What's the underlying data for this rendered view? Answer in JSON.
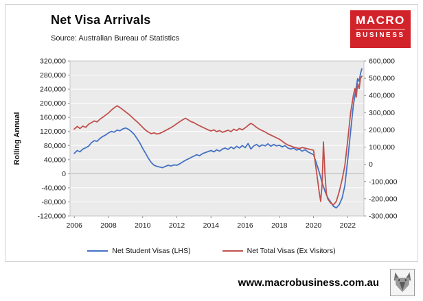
{
  "header": {
    "title": "Net Visa Arrivals",
    "source": "Source: Australian Bureau of Statistics"
  },
  "logo": {
    "line1": "MACRO",
    "line2": "BUSINESS",
    "bg_color": "#d2232a"
  },
  "footer": {
    "website": "www.macrobusiness.com.au"
  },
  "chart_data": {
    "type": "line",
    "title": "Net Visa Arrivals",
    "ylabel_left": "Rolling Annual",
    "ylim_left": [
      -120000,
      320000
    ],
    "ytick_step_left": 40000,
    "ylim_right": [
      -300000,
      600000
    ],
    "ytick_step_right": 100000,
    "xlim": [
      2005.75,
      2022.95
    ],
    "xticks": [
      2006,
      2008,
      2010,
      2012,
      2014,
      2016,
      2018,
      2020,
      2022
    ],
    "grid": true,
    "legend_position": "bottom",
    "colors": {
      "plot_bg": "#ebebeb",
      "gridline": "#ffffff",
      "zero_line": "#b7b7b7",
      "plot_border": "#c4c4c4"
    },
    "series": [
      {
        "name": "Net Student Visas (LHS)",
        "color": "#4472c4",
        "axis": "left",
        "points": [
          [
            2006.0,
            58000
          ],
          [
            2006.17,
            66000
          ],
          [
            2006.33,
            62000
          ],
          [
            2006.5,
            70000
          ],
          [
            2006.67,
            74000
          ],
          [
            2006.83,
            78000
          ],
          [
            2007.0,
            88000
          ],
          [
            2007.17,
            94000
          ],
          [
            2007.33,
            92000
          ],
          [
            2007.5,
            100000
          ],
          [
            2007.67,
            106000
          ],
          [
            2007.83,
            110000
          ],
          [
            2008.0,
            116000
          ],
          [
            2008.17,
            120000
          ],
          [
            2008.33,
            118000
          ],
          [
            2008.5,
            124000
          ],
          [
            2008.67,
            122000
          ],
          [
            2008.83,
            127000
          ],
          [
            2009.0,
            130000
          ],
          [
            2009.17,
            126000
          ],
          [
            2009.33,
            120000
          ],
          [
            2009.5,
            112000
          ],
          [
            2009.67,
            100000
          ],
          [
            2009.83,
            88000
          ],
          [
            2010.0,
            72000
          ],
          [
            2010.17,
            58000
          ],
          [
            2010.33,
            44000
          ],
          [
            2010.5,
            32000
          ],
          [
            2010.67,
            24000
          ],
          [
            2010.83,
            21000
          ],
          [
            2011.0,
            19000
          ],
          [
            2011.17,
            17000
          ],
          [
            2011.33,
            21000
          ],
          [
            2011.5,
            24000
          ],
          [
            2011.67,
            22000
          ],
          [
            2011.83,
            25000
          ],
          [
            2012.0,
            24000
          ],
          [
            2012.17,
            28000
          ],
          [
            2012.33,
            33000
          ],
          [
            2012.5,
            38000
          ],
          [
            2012.67,
            42000
          ],
          [
            2012.83,
            46000
          ],
          [
            2013.0,
            50000
          ],
          [
            2013.17,
            54000
          ],
          [
            2013.33,
            51000
          ],
          [
            2013.5,
            57000
          ],
          [
            2013.67,
            60000
          ],
          [
            2013.83,
            63000
          ],
          [
            2014.0,
            66000
          ],
          [
            2014.17,
            62000
          ],
          [
            2014.33,
            68000
          ],
          [
            2014.5,
            64000
          ],
          [
            2014.67,
            70000
          ],
          [
            2014.83,
            73000
          ],
          [
            2015.0,
            69000
          ],
          [
            2015.17,
            76000
          ],
          [
            2015.33,
            71000
          ],
          [
            2015.5,
            78000
          ],
          [
            2015.67,
            73000
          ],
          [
            2015.83,
            80000
          ],
          [
            2016.0,
            74000
          ],
          [
            2016.17,
            86000
          ],
          [
            2016.33,
            70000
          ],
          [
            2016.5,
            79000
          ],
          [
            2016.67,
            83000
          ],
          [
            2016.83,
            77000
          ],
          [
            2017.0,
            82000
          ],
          [
            2017.17,
            79000
          ],
          [
            2017.33,
            85000
          ],
          [
            2017.5,
            78000
          ],
          [
            2017.67,
            83000
          ],
          [
            2017.83,
            79000
          ],
          [
            2018.0,
            81000
          ],
          [
            2018.17,
            76000
          ],
          [
            2018.33,
            80000
          ],
          [
            2018.5,
            73000
          ],
          [
            2018.67,
            70000
          ],
          [
            2018.83,
            73000
          ],
          [
            2019.0,
            67000
          ],
          [
            2019.17,
            70000
          ],
          [
            2019.33,
            64000
          ],
          [
            2019.5,
            68000
          ],
          [
            2019.67,
            62000
          ],
          [
            2019.83,
            58000
          ],
          [
            2020.0,
            54000
          ],
          [
            2020.17,
            30000
          ],
          [
            2020.33,
            5000
          ],
          [
            2020.5,
            -25000
          ],
          [
            2020.67,
            -50000
          ],
          [
            2020.83,
            -68000
          ],
          [
            2021.0,
            -80000
          ],
          [
            2021.17,
            -93000
          ],
          [
            2021.33,
            -97000
          ],
          [
            2021.5,
            -88000
          ],
          [
            2021.67,
            -70000
          ],
          [
            2021.83,
            -35000
          ],
          [
            2022.0,
            40000
          ],
          [
            2022.17,
            120000
          ],
          [
            2022.33,
            195000
          ],
          [
            2022.5,
            245000
          ],
          [
            2022.58,
            270000
          ],
          [
            2022.67,
            262000
          ],
          [
            2022.75,
            285000
          ],
          [
            2022.83,
            298000
          ]
        ]
      },
      {
        "name": "Net Total Visas (Ex Visitors)",
        "color": "#c0504d",
        "axis": "right",
        "points": [
          [
            2006.0,
            205000
          ],
          [
            2006.17,
            220000
          ],
          [
            2006.33,
            208000
          ],
          [
            2006.5,
            222000
          ],
          [
            2006.67,
            215000
          ],
          [
            2006.83,
            232000
          ],
          [
            2007.0,
            242000
          ],
          [
            2007.17,
            252000
          ],
          [
            2007.33,
            246000
          ],
          [
            2007.5,
            262000
          ],
          [
            2007.67,
            274000
          ],
          [
            2007.83,
            286000
          ],
          [
            2008.0,
            298000
          ],
          [
            2008.17,
            315000
          ],
          [
            2008.33,
            328000
          ],
          [
            2008.5,
            340000
          ],
          [
            2008.67,
            330000
          ],
          [
            2008.83,
            318000
          ],
          [
            2009.0,
            305000
          ],
          [
            2009.17,
            292000
          ],
          [
            2009.33,
            278000
          ],
          [
            2009.5,
            262000
          ],
          [
            2009.67,
            248000
          ],
          [
            2009.83,
            232000
          ],
          [
            2010.0,
            215000
          ],
          [
            2010.17,
            198000
          ],
          [
            2010.33,
            188000
          ],
          [
            2010.5,
            178000
          ],
          [
            2010.67,
            183000
          ],
          [
            2010.83,
            176000
          ],
          [
            2011.0,
            180000
          ],
          [
            2011.17,
            188000
          ],
          [
            2011.33,
            196000
          ],
          [
            2011.5,
            205000
          ],
          [
            2011.67,
            214000
          ],
          [
            2011.83,
            224000
          ],
          [
            2012.0,
            236000
          ],
          [
            2012.17,
            248000
          ],
          [
            2012.33,
            258000
          ],
          [
            2012.5,
            268000
          ],
          [
            2012.67,
            258000
          ],
          [
            2012.83,
            248000
          ],
          [
            2013.0,
            242000
          ],
          [
            2013.17,
            232000
          ],
          [
            2013.33,
            224000
          ],
          [
            2013.5,
            216000
          ],
          [
            2013.67,
            208000
          ],
          [
            2013.83,
            200000
          ],
          [
            2014.0,
            194000
          ],
          [
            2014.17,
            200000
          ],
          [
            2014.33,
            190000
          ],
          [
            2014.5,
            196000
          ],
          [
            2014.67,
            186000
          ],
          [
            2014.83,
            192000
          ],
          [
            2015.0,
            198000
          ],
          [
            2015.17,
            190000
          ],
          [
            2015.33,
            204000
          ],
          [
            2015.5,
            196000
          ],
          [
            2015.67,
            208000
          ],
          [
            2015.83,
            200000
          ],
          [
            2016.0,
            212000
          ],
          [
            2016.17,
            226000
          ],
          [
            2016.33,
            238000
          ],
          [
            2016.5,
            228000
          ],
          [
            2016.67,
            214000
          ],
          [
            2016.83,
            204000
          ],
          [
            2017.0,
            196000
          ],
          [
            2017.17,
            188000
          ],
          [
            2017.33,
            178000
          ],
          [
            2017.5,
            170000
          ],
          [
            2017.67,
            162000
          ],
          [
            2017.83,
            154000
          ],
          [
            2018.0,
            146000
          ],
          [
            2018.17,
            134000
          ],
          [
            2018.33,
            122000
          ],
          [
            2018.5,
            112000
          ],
          [
            2018.67,
            106000
          ],
          [
            2018.83,
            100000
          ],
          [
            2019.0,
            96000
          ],
          [
            2019.17,
            92000
          ],
          [
            2019.33,
            98000
          ],
          [
            2019.5,
            94000
          ],
          [
            2019.67,
            90000
          ],
          [
            2019.83,
            86000
          ],
          [
            2020.0,
            82000
          ],
          [
            2020.17,
            -40000
          ],
          [
            2020.33,
            -160000
          ],
          [
            2020.42,
            -215000
          ],
          [
            2020.5,
            -120000
          ],
          [
            2020.58,
            130000
          ],
          [
            2020.67,
            -60000
          ],
          [
            2020.75,
            -170000
          ],
          [
            2020.83,
            -200000
          ],
          [
            2021.0,
            -225000
          ],
          [
            2021.17,
            -235000
          ],
          [
            2021.33,
            -215000
          ],
          [
            2021.5,
            -160000
          ],
          [
            2021.67,
            -90000
          ],
          [
            2021.83,
            -10000
          ],
          [
            2022.0,
            140000
          ],
          [
            2022.17,
            300000
          ],
          [
            2022.33,
            400000
          ],
          [
            2022.42,
            440000
          ],
          [
            2022.5,
            390000
          ],
          [
            2022.58,
            470000
          ],
          [
            2022.67,
            440000
          ],
          [
            2022.75,
            500000
          ],
          [
            2022.83,
            512000
          ]
        ]
      }
    ]
  }
}
